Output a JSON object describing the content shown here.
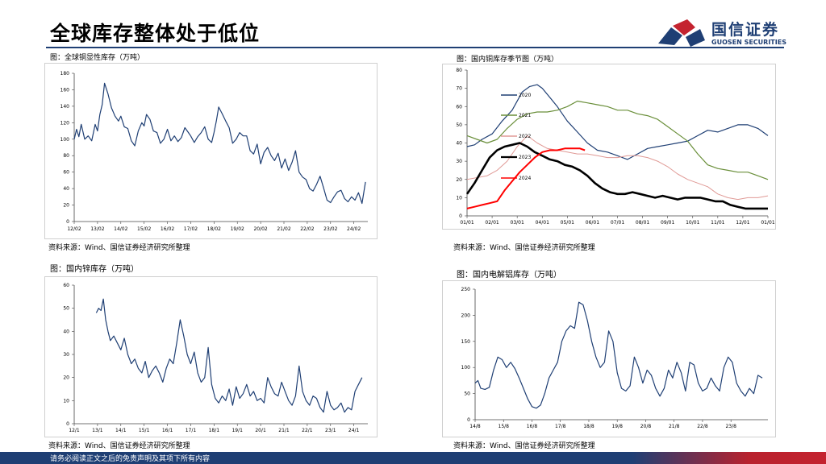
{
  "page": {
    "title": "全球库存整体处于低位",
    "footer": "请务必阅读正文之后的免责声明及其项下所有内容"
  },
  "logo": {
    "cn": "国信证券",
    "en": "GUOSEN SECURITIES",
    "colors": {
      "blue": "#1f3f74",
      "red": "#c4232f"
    }
  },
  "chart_data": [
    {
      "id": "global_copper",
      "type": "line",
      "title": "图：全球铜显性库存（万吨）",
      "source": "资料来源：Wind、国信证券经济研究所整理",
      "ylim": [
        0,
        180
      ],
      "yticks": [
        0,
        20,
        40,
        60,
        80,
        100,
        120,
        140,
        160,
        180
      ],
      "xlim": [
        0,
        12.6
      ],
      "xtick_labels": [
        "12/02",
        "13/02",
        "14/02",
        "15/02",
        "16/02",
        "17/02",
        "18/02",
        "19/02",
        "20/02",
        "21/02",
        "22/02",
        "23/02",
        "24/02"
      ],
      "series": [
        {
          "name": "全球铜显性库存",
          "color": "#1f3f74",
          "x": [
            0,
            0.1,
            0.2,
            0.3,
            0.45,
            0.6,
            0.75,
            0.9,
            1.0,
            1.1,
            1.2,
            1.3,
            1.45,
            1.6,
            1.75,
            1.9,
            2.0,
            2.15,
            2.3,
            2.45,
            2.6,
            2.75,
            2.9,
            3.0,
            3.1,
            3.25,
            3.4,
            3.55,
            3.7,
            3.85,
            4.0,
            4.15,
            4.3,
            4.45,
            4.6,
            4.75,
            4.9,
            5.0,
            5.15,
            5.3,
            5.45,
            5.6,
            5.75,
            5.9,
            6.0,
            6.1,
            6.2,
            6.35,
            6.5,
            6.65,
            6.8,
            6.95,
            7.1,
            7.25,
            7.4,
            7.55,
            7.7,
            7.85,
            8.0,
            8.15,
            8.3,
            8.45,
            8.6,
            8.75,
            8.9,
            9.05,
            9.2,
            9.35,
            9.5,
            9.65,
            9.8,
            9.95,
            10.1,
            10.25,
            10.4,
            10.55,
            10.7,
            10.85,
            11.0,
            11.15,
            11.3,
            11.45,
            11.6,
            11.75,
            11.9,
            12.05,
            12.2,
            12.35,
            12.5
          ],
          "values": [
            100,
            112,
            103,
            118,
            100,
            104,
            98,
            118,
            110,
            130,
            142,
            168,
            155,
            138,
            128,
            122,
            128,
            115,
            113,
            98,
            92,
            110,
            120,
            116,
            130,
            124,
            110,
            108,
            95,
            100,
            112,
            98,
            104,
            97,
            102,
            114,
            108,
            104,
            96,
            103,
            108,
            115,
            100,
            96,
            108,
            122,
            139,
            131,
            122,
            114,
            95,
            100,
            108,
            104,
            104,
            86,
            82,
            94,
            70,
            84,
            90,
            80,
            74,
            83,
            65,
            76,
            62,
            72,
            86,
            60,
            54,
            51,
            40,
            37,
            45,
            55,
            41,
            26,
            23,
            30,
            36,
            38,
            28,
            24,
            30,
            26,
            35,
            22,
            48
          ]
        }
      ]
    },
    {
      "id": "cn_copper_seasonal",
      "type": "line",
      "title": "图：国内铜库存季节图（万吨）",
      "source": "资料来源：Wind、国信证券经济研究所整理",
      "ylim": [
        0,
        80
      ],
      "yticks": [
        0,
        10,
        20,
        30,
        40,
        50,
        60,
        70,
        80
      ],
      "xlim": [
        0,
        12
      ],
      "xtick_labels": [
        "01/01",
        "02/01",
        "03/01",
        "04/01",
        "05/01",
        "06/01",
        "07/01",
        "08/01",
        "09/01",
        "10/01",
        "11/01",
        "12/01",
        "01/01"
      ],
      "series": [
        {
          "name": "2020",
          "color": "#1f3f74",
          "width": 1.2,
          "x": [
            0,
            0.3,
            0.6,
            1,
            1.4,
            1.8,
            2.2,
            2.5,
            2.8,
            3.0,
            3.3,
            3.6,
            4.0,
            4.4,
            4.8,
            5.2,
            5.6,
            6.0,
            6.4,
            6.8,
            7.2,
            7.6,
            8.0,
            8.4,
            8.8,
            9.2,
            9.6,
            10.0,
            10.4,
            10.8,
            11.2,
            11.6,
            12.0
          ],
          "values": [
            38,
            39,
            42,
            45,
            52,
            58,
            68,
            71,
            72,
            70,
            65,
            60,
            52,
            46,
            40,
            36,
            35,
            33,
            31,
            34,
            37,
            38,
            39,
            40,
            41,
            44,
            47,
            46,
            48,
            50,
            50,
            48,
            44
          ]
        },
        {
          "name": "2021",
          "color": "#6a8f3a",
          "width": 1.2,
          "x": [
            0,
            0.4,
            0.8,
            1.2,
            1.6,
            2.0,
            2.4,
            2.8,
            3.2,
            3.6,
            4.0,
            4.4,
            4.8,
            5.2,
            5.6,
            6.0,
            6.4,
            6.8,
            7.2,
            7.6,
            8.0,
            8.4,
            8.8,
            9.2,
            9.6,
            10.0,
            10.4,
            10.8,
            11.2,
            11.6,
            12.0
          ],
          "values": [
            44,
            42,
            40,
            42,
            48,
            53,
            56,
            57,
            57,
            58,
            60,
            63,
            62,
            61,
            60,
            58,
            58,
            56,
            55,
            53,
            49,
            45,
            41,
            34,
            28,
            26,
            25,
            24,
            24,
            22,
            20
          ]
        },
        {
          "name": "2022",
          "color": "#e09a96",
          "width": 1.0,
          "x": [
            0,
            0.4,
            0.8,
            1.2,
            1.6,
            2.0,
            2.4,
            2.8,
            3.2,
            3.6,
            4.0,
            4.4,
            4.8,
            5.2,
            5.6,
            6.0,
            6.4,
            6.8,
            7.2,
            7.6,
            8.0,
            8.4,
            8.8,
            9.2,
            9.6,
            10.0,
            10.4,
            10.8,
            11.2,
            11.6,
            12.0
          ],
          "values": [
            20,
            21,
            22,
            25,
            30,
            38,
            44,
            40,
            37,
            36,
            35,
            34,
            34,
            33,
            32,
            32,
            33,
            33,
            32,
            30,
            27,
            23,
            20,
            18,
            16,
            12,
            10,
            9,
            10,
            10,
            11
          ]
        },
        {
          "name": "2023",
          "color": "#000000",
          "width": 2.6,
          "x": [
            0,
            0.3,
            0.6,
            0.9,
            1.2,
            1.5,
            1.8,
            2.1,
            2.4,
            2.7,
            3.0,
            3.3,
            3.6,
            3.9,
            4.2,
            4.5,
            4.8,
            5.1,
            5.4,
            5.7,
            6.0,
            6.3,
            6.6,
            6.9,
            7.2,
            7.5,
            7.8,
            8.1,
            8.4,
            8.7,
            9.0,
            9.3,
            9.6,
            9.9,
            10.2,
            10.5,
            10.8,
            11.1,
            11.4,
            11.7,
            12.0
          ],
          "values": [
            12,
            18,
            25,
            32,
            36,
            38,
            39,
            40,
            38,
            35,
            33,
            31,
            30,
            28,
            27,
            25,
            22,
            18,
            15,
            13,
            12,
            12,
            13,
            12,
            11,
            10,
            11,
            10,
            9,
            10,
            10,
            10,
            9,
            8,
            8,
            6,
            5,
            4,
            4,
            4,
            4
          ]
        },
        {
          "name": "2024",
          "color": "#ff0000",
          "width": 2.0,
          "x": [
            0,
            0.3,
            0.6,
            0.9,
            1.2,
            1.5,
            1.8,
            2.1,
            2.4,
            2.7,
            3.0,
            3.3,
            3.6,
            3.9,
            4.2,
            4.5,
            4.7
          ],
          "values": [
            4,
            5,
            6,
            7,
            8,
            14,
            19,
            24,
            28,
            32,
            35,
            36,
            36,
            37,
            37,
            37,
            36
          ]
        }
      ]
    },
    {
      "id": "cn_zinc",
      "type": "line",
      "title": "图：国内锌库存（万吨）",
      "source": "资料来源：Wind、国信证券经济研究所整理",
      "ylim": [
        0,
        60
      ],
      "yticks": [
        0,
        10,
        20,
        30,
        40,
        50,
        60
      ],
      "xlim": [
        0,
        12.6
      ],
      "xtick_labels": [
        "12/1",
        "13/1",
        "14/1",
        "15/1",
        "16/1",
        "17/1",
        "18/1",
        "19/1",
        "20/1",
        "21/1",
        "22/1",
        "23/1",
        "24/1"
      ],
      "series": [
        {
          "name": "国内锌库存",
          "color": "#1f3f74",
          "x": [
            0.95,
            1.05,
            1.15,
            1.25,
            1.35,
            1.45,
            1.55,
            1.7,
            1.85,
            2.0,
            2.15,
            2.3,
            2.45,
            2.6,
            2.75,
            2.9,
            3.05,
            3.2,
            3.35,
            3.5,
            3.65,
            3.8,
            3.95,
            4.1,
            4.25,
            4.4,
            4.55,
            4.7,
            4.85,
            5.0,
            5.15,
            5.3,
            5.45,
            5.6,
            5.75,
            5.9,
            6.05,
            6.2,
            6.35,
            6.5,
            6.65,
            6.8,
            6.95,
            7.1,
            7.25,
            7.4,
            7.55,
            7.7,
            7.85,
            8.0,
            8.15,
            8.3,
            8.45,
            8.6,
            8.75,
            8.9,
            9.05,
            9.2,
            9.35,
            9.5,
            9.65,
            9.8,
            9.95,
            10.1,
            10.25,
            10.4,
            10.55,
            10.7,
            10.85,
            11.0,
            11.15,
            11.3,
            11.45,
            11.6,
            11.75,
            11.9,
            12.05,
            12.2,
            12.35
          ],
          "values": [
            48,
            50,
            49,
            54,
            45,
            40,
            36,
            38,
            35,
            32,
            37,
            30,
            26,
            28,
            24,
            22,
            27,
            20,
            23,
            25,
            22,
            18,
            24,
            28,
            26,
            35,
            45,
            38,
            30,
            26,
            31,
            22,
            18,
            20,
            33,
            17,
            11,
            9,
            12,
            10,
            15,
            8,
            16,
            11,
            13,
            17,
            12,
            14,
            10,
            11,
            9,
            20,
            16,
            13,
            12,
            18,
            14,
            10,
            8,
            12,
            25,
            14,
            10,
            8,
            12,
            11,
            7,
            5,
            14,
            8,
            6,
            7,
            9,
            5,
            7,
            6,
            14,
            17,
            20
          ]
        }
      ]
    },
    {
      "id": "cn_aluminum",
      "type": "line",
      "title": "图：国内电解铝库存（万吨）",
      "source": "资料来源：Wind、国信证券经济研究所整理",
      "ylim": [
        0,
        250
      ],
      "yticks": [
        0,
        50,
        100,
        150,
        200,
        250
      ],
      "xlim": [
        0,
        10.3
      ],
      "xtick_labels": [
        "14/8",
        "15/8",
        "16/8",
        "17/8",
        "18/8",
        "19/8",
        "20/8",
        "21/8",
        "22/8",
        "23/8"
      ],
      "series": [
        {
          "name": "国内电解铝库存",
          "color": "#1f3f74",
          "x": [
            0,
            0.1,
            0.2,
            0.35,
            0.5,
            0.65,
            0.8,
            0.95,
            1.1,
            1.25,
            1.4,
            1.55,
            1.7,
            1.85,
            2.0,
            2.15,
            2.3,
            2.45,
            2.6,
            2.75,
            2.9,
            3.05,
            3.2,
            3.35,
            3.5,
            3.65,
            3.8,
            3.95,
            4.1,
            4.25,
            4.4,
            4.55,
            4.7,
            4.85,
            5.0,
            5.15,
            5.3,
            5.45,
            5.6,
            5.75,
            5.9,
            6.05,
            6.2,
            6.35,
            6.5,
            6.65,
            6.8,
            6.95,
            7.1,
            7.25,
            7.4,
            7.55,
            7.7,
            7.85,
            8.0,
            8.15,
            8.3,
            8.45,
            8.6,
            8.75,
            8.9,
            9.05,
            9.2,
            9.35,
            9.5,
            9.65,
            9.8,
            9.95,
            10.1
          ],
          "values": [
            70,
            75,
            60,
            58,
            62,
            95,
            120,
            115,
            100,
            110,
            98,
            80,
            60,
            40,
            25,
            22,
            28,
            50,
            80,
            95,
            110,
            150,
            170,
            180,
            175,
            225,
            220,
            190,
            150,
            120,
            100,
            110,
            170,
            150,
            90,
            60,
            55,
            65,
            120,
            100,
            70,
            95,
            85,
            60,
            45,
            60,
            95,
            80,
            110,
            90,
            55,
            110,
            105,
            70,
            55,
            60,
            80,
            65,
            55,
            100,
            120,
            110,
            70,
            55,
            45,
            60,
            50,
            85,
            80
          ]
        }
      ]
    }
  ]
}
